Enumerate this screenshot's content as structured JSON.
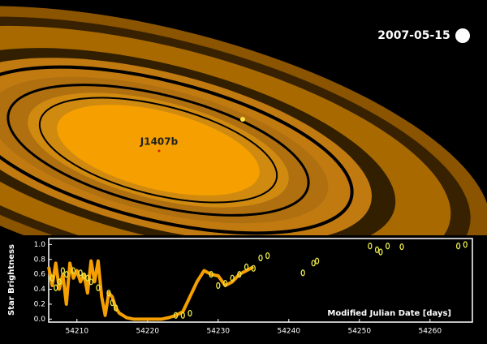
{
  "date_label": "2007-05-15",
  "planet_label": "J1407b",
  "chart_data": {
    "type": "line",
    "xlabel": "Modified Julian Date [days]",
    "ylabel": "Star Brightness",
    "xlim": [
      54206,
      54266
    ],
    "ylim": [
      -0.04,
      1.08
    ],
    "xticks": [
      54210,
      54220,
      54230,
      54240,
      54250,
      54260
    ],
    "yticks": [
      {
        "value": 0,
        "label": "0.0"
      },
      {
        "value": 0.2,
        "label": "0.2"
      },
      {
        "value": 0.4,
        "label": "0.4"
      },
      {
        "value": 0.6,
        "label": "0.6"
      },
      {
        "value": 0.8,
        "label": "0.8"
      },
      {
        "value": 1,
        "label": "1.0"
      }
    ],
    "series": [
      {
        "style": "line",
        "color": "#f5a000",
        "x": [
          54206,
          54206.5,
          54207,
          54207.5,
          54208,
          54208.5,
          54209,
          54209.5,
          54210,
          54210.5,
          54211,
          54211.5,
          54212,
          54212.5,
          54213,
          54213.5,
          54214,
          54214.5,
          54215,
          54215.5,
          54216,
          54217,
          54218,
          54220,
          54222,
          54223,
          54224,
          54225,
          54226,
          54227,
          54228,
          54229,
          54230,
          54231,
          54232,
          54233,
          54234,
          54235
        ],
        "values": [
          0.7,
          0.45,
          0.75,
          0.4,
          0.6,
          0.2,
          0.75,
          0.55,
          0.65,
          0.5,
          0.6,
          0.35,
          0.78,
          0.5,
          0.78,
          0.3,
          0.05,
          0.35,
          0.3,
          0.15,
          0.08,
          0.02,
          0,
          0,
          0,
          0.02,
          0.05,
          0.1,
          0.3,
          0.5,
          0.65,
          0.6,
          0.58,
          0.45,
          0.5,
          0.6,
          0.65,
          0.7
        ]
      },
      {
        "style": "markers",
        "color": "#e8e84a",
        "x": [
          54206.5,
          54207,
          54207.5,
          54208,
          54208.5,
          54209.5,
          54210.5,
          54211,
          54211.5,
          54212,
          54213,
          54214.5,
          54215,
          54215.5,
          54224,
          54225,
          54226,
          54229,
          54230,
          54231,
          54232,
          54233,
          54234,
          54235,
          54236,
          54237,
          54242,
          54243.5,
          54244,
          54251.5,
          54252.5,
          54253,
          54254,
          54256,
          54264,
          54265
        ],
        "values": [
          0.55,
          0.42,
          0.5,
          0.65,
          0.6,
          0.65,
          0.62,
          0.58,
          0.55,
          0.5,
          0.42,
          0.35,
          0.22,
          0.15,
          0.05,
          0.05,
          0.08,
          0.6,
          0.45,
          0.48,
          0.55,
          0.6,
          0.7,
          0.68,
          0.82,
          0.85,
          0.62,
          0.75,
          0.78,
          0.98,
          0.93,
          0.9,
          0.98,
          0.97,
          0.98,
          1
        ]
      }
    ]
  }
}
